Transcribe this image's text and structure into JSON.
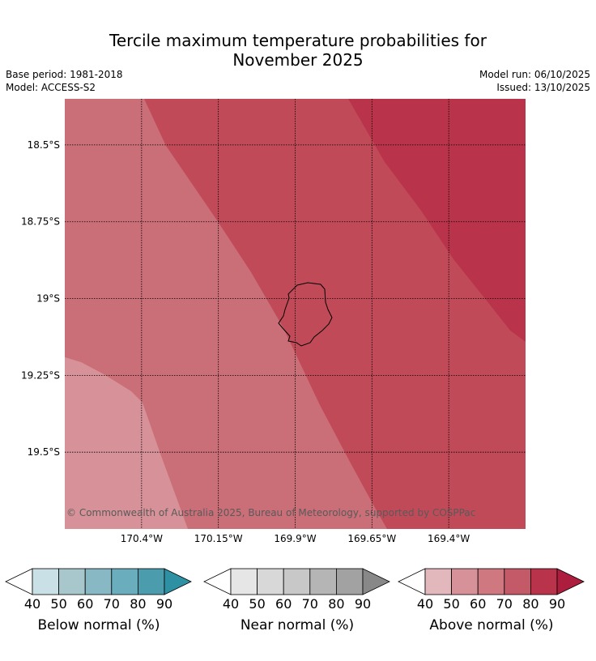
{
  "title_line1": "Tercile maximum temperature probabilities for",
  "title_line2": "November 2025",
  "base_period": "Base period: 1981-2018",
  "model": "Model: ACCESS-S2",
  "model_run": "Model run: 06/10/2025",
  "issued": "Issued: 13/10/2025",
  "copyright": "© Commonwealth of Australia 2025, Bureau of Meteorology, supported by COSPPac",
  "map": {
    "lat_labels": [
      "18.5°S",
      "18.75°S",
      "19°S",
      "19.25°S",
      "19.5°S"
    ],
    "lon_labels": [
      "170.4°W",
      "170.15°W",
      "169.9°W",
      "169.65°W",
      "169.4°W"
    ],
    "lat_values": [
      -18.5,
      -18.75,
      -19.0,
      -19.25,
      -19.5
    ],
    "lon_values": [
      -170.4,
      -170.15,
      -169.9,
      -169.65,
      -169.4
    ],
    "extent": {
      "lon_min": -170.65,
      "lon_max": -169.15,
      "lat_min": -19.75,
      "lat_max": -18.35
    },
    "bands": [
      {
        "category": "Above normal",
        "probability_range": "50-60",
        "color": "#d69298"
      },
      {
        "category": "Above normal",
        "probability_range": "60-70",
        "color": "#ca6e78"
      },
      {
        "category": "Above normal",
        "probability_range": "70-80",
        "color": "#c04a58"
      },
      {
        "category": "Above normal",
        "probability_range": "80-90",
        "color": "#b9344b"
      }
    ]
  },
  "colorbars": [
    {
      "label": "Below normal (%)",
      "ticks": [
        "40",
        "50",
        "60",
        "70",
        "80",
        "90"
      ],
      "colors": [
        "#c8e0e6",
        "#a7c7cd",
        "#88b8c3",
        "#6aadbc",
        "#4b9cad"
      ],
      "arrow_color": "#2e90a3"
    },
    {
      "label": "Near normal (%)",
      "ticks": [
        "40",
        "50",
        "60",
        "70",
        "80",
        "90"
      ],
      "colors": [
        "#e6e6e6",
        "#d8d8d8",
        "#c8c8c8",
        "#b5b5b5",
        "#a2a2a2"
      ],
      "arrow_color": "#888888"
    },
    {
      "label": "Above normal (%)",
      "ticks": [
        "40",
        "50",
        "60",
        "70",
        "80",
        "90"
      ],
      "colors": [
        "#e2b8bd",
        "#d69298",
        "#cf7880",
        "#c45a67",
        "#b9344b"
      ],
      "arrow_color": "#ad1d3d"
    }
  ]
}
